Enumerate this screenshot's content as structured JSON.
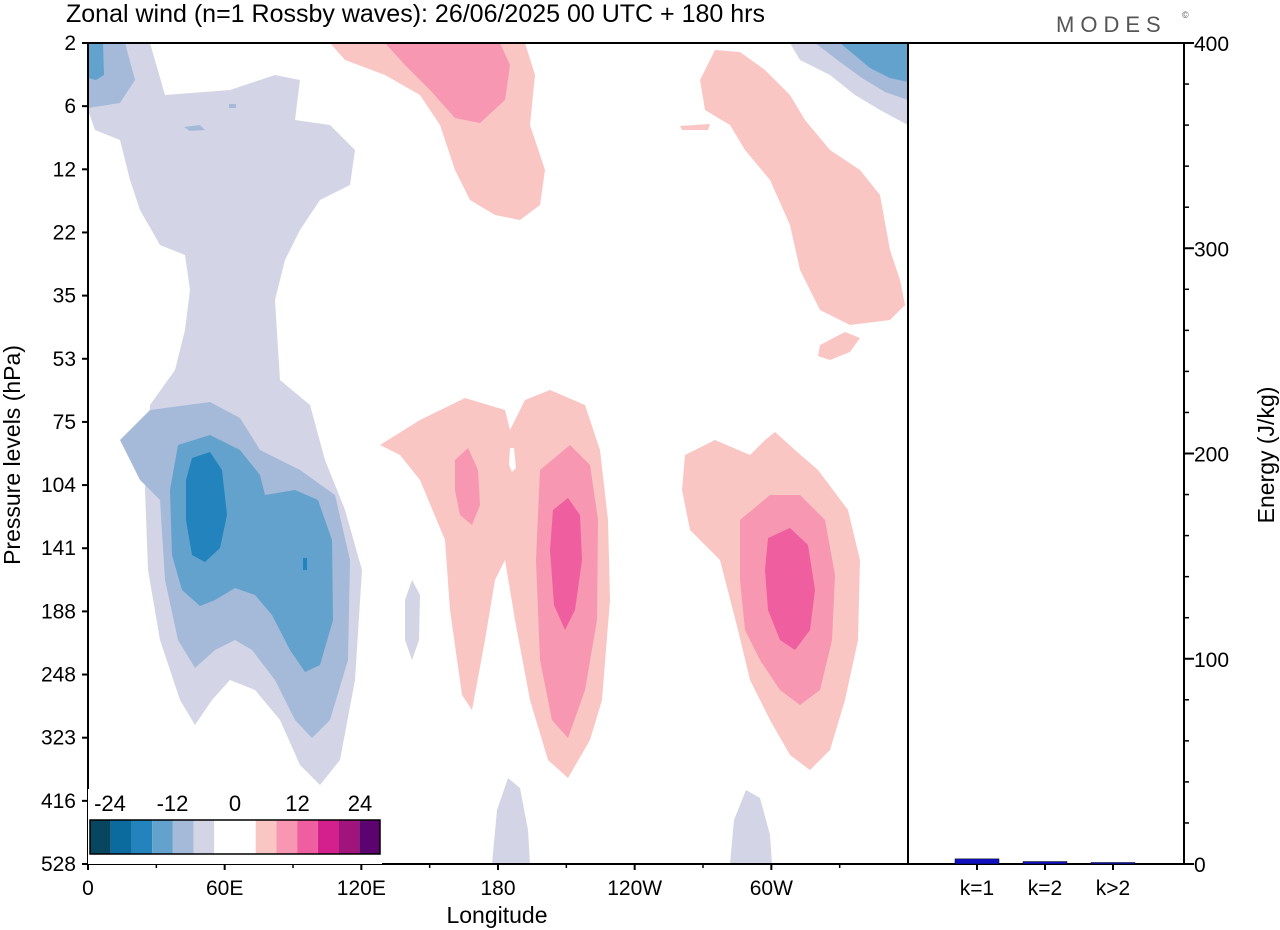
{
  "title": "Zonal wind (n=1 Rossby waves):  26/06/2025  00 UTC  + 180 hrs",
  "logo": "MODES",
  "logo_mark": "©",
  "colors": {
    "neg_light": "#d3d5e6",
    "neg_mid": "#a5b9d9",
    "neg_strong": "#63a2cc",
    "neg_core": "#2383bd",
    "pos_light": "#f9c6c3",
    "pos_mid": "#f797b2",
    "pos_strong": "#ef5f9f",
    "bar": "#1010c0"
  },
  "chart_data": [
    {
      "type": "heatmap",
      "xlabel": "Longitude",
      "ylabel": "Pressure levels (hPa)",
      "x_ticks": [
        "0",
        "60E",
        "120E",
        "180",
        "120W",
        "60W"
      ],
      "y_ticks": [
        "2",
        "6",
        "12",
        "22",
        "35",
        "53",
        "75",
        "104",
        "141",
        "188",
        "248",
        "323",
        "416",
        "528"
      ],
      "colorbar": {
        "tick_labels": [
          "-24",
          "-12",
          "0",
          "12",
          "24"
        ],
        "levels": [
          "#08455e",
          "#0b6a9e",
          "#2383bd",
          "#63a2cc",
          "#a5b9d9",
          "#d3d5e6",
          "#ffffff",
          "#ffffff",
          "#f9c6c3",
          "#f797b2",
          "#ef5f9f",
          "#d4208c",
          "#a1147c",
          "#5c036f"
        ]
      }
    },
    {
      "type": "bar",
      "categories": [
        "k=1",
        "k=2",
        "k>2"
      ],
      "values": [
        2.5,
        1.2,
        0.5
      ],
      "ylabel": "Energy (J/kg)",
      "ylim": [
        0,
        400
      ],
      "y_ticks": [
        "0",
        "100",
        "200",
        "300",
        "400"
      ]
    }
  ]
}
